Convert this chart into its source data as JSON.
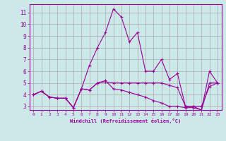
{
  "xlabel": "Windchill (Refroidissement éolien,°C)",
  "background_color": "#cce8e8",
  "line_color": "#990099",
  "grid_color": "#aaaaaa",
  "xlim": [
    -0.5,
    23.5
  ],
  "ylim": [
    2.7,
    11.7
  ],
  "yticks": [
    3,
    4,
    5,
    6,
    7,
    8,
    9,
    10,
    11
  ],
  "xticks": [
    0,
    1,
    2,
    3,
    4,
    5,
    6,
    7,
    8,
    9,
    10,
    11,
    12,
    13,
    14,
    15,
    16,
    17,
    18,
    19,
    20,
    21,
    22,
    23
  ],
  "series": [
    [
      4.0,
      4.3,
      3.8,
      3.7,
      3.7,
      2.9,
      4.5,
      4.4,
      5.0,
      5.1,
      5.0,
      5.0,
      5.0,
      5.0,
      5.0,
      5.0,
      5.0,
      4.8,
      4.6,
      3.0,
      3.0,
      3.0,
      4.7,
      5.0
    ],
    [
      4.0,
      4.3,
      3.8,
      3.7,
      3.7,
      2.9,
      4.5,
      4.4,
      5.0,
      5.2,
      4.5,
      4.4,
      4.2,
      4.0,
      3.8,
      3.5,
      3.3,
      3.0,
      3.0,
      2.9,
      2.9,
      2.7,
      5.0,
      5.0
    ],
    [
      4.0,
      4.3,
      3.8,
      3.7,
      3.7,
      2.9,
      4.5,
      6.5,
      8.0,
      9.3,
      11.3,
      10.6,
      8.5,
      9.3,
      6.0,
      6.0,
      7.0,
      5.3,
      5.8,
      3.0,
      3.0,
      2.7,
      6.0,
      5.0
    ]
  ]
}
